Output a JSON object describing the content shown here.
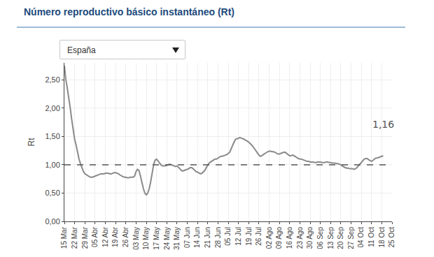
{
  "chart_data": {
    "type": "line",
    "title": "Número reproductivo básico instantáneo (Rt)",
    "selector": "España",
    "y_label": "Rt",
    "color": "#8a8a8a",
    "grid": true,
    "ylim": [
      0,
      2.8
    ],
    "yticks": [
      {
        "value": 0,
        "label": "0,00"
      },
      {
        "value": 0.5,
        "label": "0,50"
      },
      {
        "value": 1,
        "label": "1,00"
      },
      {
        "value": 1.5,
        "label": "1,50"
      },
      {
        "value": 2,
        "label": "2,00"
      },
      {
        "value": 2.5,
        "label": "2,50"
      }
    ],
    "reference_line": 1,
    "annotations": [
      {
        "text": "1,16",
        "value": 1.16
      }
    ],
    "categories": [
      "15 Mar",
      null,
      null,
      null,
      null,
      null,
      null,
      "22 Mar",
      null,
      null,
      null,
      null,
      null,
      null,
      "29 Mar",
      null,
      null,
      null,
      null,
      null,
      null,
      "05 Abr",
      null,
      null,
      null,
      null,
      null,
      null,
      "12 Abr",
      null,
      null,
      null,
      null,
      null,
      null,
      "19 Abr",
      null,
      null,
      null,
      null,
      null,
      null,
      "26 Abr",
      null,
      null,
      null,
      null,
      null,
      null,
      "03 May",
      null,
      null,
      null,
      null,
      null,
      null,
      "10 May",
      null,
      null,
      null,
      null,
      null,
      null,
      "17 May",
      null,
      null,
      null,
      null,
      null,
      null,
      "24 May",
      null,
      null,
      null,
      null,
      null,
      null,
      "31 May",
      null,
      null,
      null,
      null,
      null,
      null,
      "07 Jun",
      null,
      null,
      null,
      null,
      null,
      null,
      "14 Jun",
      null,
      null,
      null,
      null,
      null,
      null,
      "21 Jun",
      null,
      null,
      null,
      null,
      null,
      null,
      "28 Jun",
      null,
      null,
      null,
      null,
      null,
      null,
      "05 Jul",
      null,
      null,
      null,
      null,
      null,
      null,
      "12 Jul",
      null,
      null,
      null,
      null,
      null,
      null,
      "19 Jul",
      null,
      null,
      null,
      null,
      null,
      null,
      "26 Jul",
      null,
      null,
      null,
      null,
      null,
      null,
      "02 Ago",
      null,
      null,
      null,
      null,
      null,
      null,
      "09 Ago",
      null,
      null,
      null,
      null,
      null,
      null,
      "16 Ago",
      null,
      null,
      null,
      null,
      null,
      null,
      "23 Ago",
      null,
      null,
      null,
      null,
      null,
      null,
      "30 Ago",
      null,
      null,
      null,
      null,
      null,
      null,
      "06 Sep",
      null,
      null,
      null,
      null,
      null,
      null,
      "13 Sep",
      null,
      null,
      null,
      null,
      null,
      null,
      "20 Sep",
      null,
      null,
      null,
      null,
      null,
      null,
      "27 Sep",
      null,
      null,
      null,
      null,
      null,
      null,
      "04 Oct",
      null,
      null,
      null,
      null,
      null,
      null,
      "11 Oct",
      null,
      null,
      null,
      null,
      null,
      null,
      "18 Oct",
      null,
      null,
      null,
      null,
      null,
      null,
      "25 Oct"
    ],
    "values": [
      2.75,
      2.5,
      2.35,
      2.2,
      2.0,
      1.8,
      1.6,
      1.45,
      1.35,
      1.22,
      1.1,
      1.02,
      0.95,
      0.88,
      0.84,
      0.82,
      0.8,
      0.79,
      0.78,
      0.78,
      0.79,
      0.8,
      0.81,
      0.82,
      0.83,
      0.84,
      0.84,
      0.84,
      0.85,
      0.85,
      0.85,
      0.84,
      0.84,
      0.85,
      0.86,
      0.86,
      0.85,
      0.84,
      0.82,
      0.8,
      0.79,
      0.78,
      0.78,
      0.77,
      0.77,
      0.78,
      0.78,
      0.78,
      0.8,
      0.88,
      0.92,
      0.9,
      0.8,
      0.68,
      0.58,
      0.5,
      0.47,
      0.5,
      0.58,
      0.7,
      0.85,
      1.0,
      1.08,
      1.1,
      1.07,
      1.03,
      1.0,
      0.98,
      0.98,
      0.98,
      0.99,
      1.0,
      1.01,
      1.0,
      0.99,
      0.98,
      0.97,
      0.98,
      0.96,
      0.93,
      0.9,
      0.89,
      0.9,
      0.91,
      0.92,
      0.93,
      0.95,
      0.95,
      0.93,
      0.9,
      0.88,
      0.87,
      0.85,
      0.84,
      0.85,
      0.87,
      0.9,
      0.95,
      1.0,
      1.03,
      1.05,
      1.07,
      1.08,
      1.1,
      1.1,
      1.12,
      1.13,
      1.15,
      1.15,
      1.16,
      1.17,
      1.18,
      1.2,
      1.22,
      1.28,
      1.35,
      1.4,
      1.45,
      1.46,
      1.47,
      1.48,
      1.47,
      1.46,
      1.45,
      1.43,
      1.42,
      1.4,
      1.38,
      1.35,
      1.32,
      1.28,
      1.25,
      1.2,
      1.17,
      1.15,
      1.16,
      1.18,
      1.2,
      1.22,
      1.23,
      1.24,
      1.24,
      1.23,
      1.23,
      1.22,
      1.2,
      1.19,
      1.19,
      1.2,
      1.21,
      1.22,
      1.22,
      1.2,
      1.18,
      1.16,
      1.16,
      1.17,
      1.16,
      1.14,
      1.12,
      1.11,
      1.1,
      1.1,
      1.09,
      1.08,
      1.07,
      1.06,
      1.06,
      1.05,
      1.05,
      1.05,
      1.04,
      1.04,
      1.05,
      1.05,
      1.05,
      1.04,
      1.04,
      1.04,
      1.05,
      1.05,
      1.04,
      1.04,
      1.03,
      1.03,
      1.03,
      1.02,
      1.02,
      1.01,
      1.0,
      0.98,
      0.96,
      0.95,
      0.94,
      0.94,
      0.93,
      0.93,
      0.93,
      0.92,
      0.93,
      0.95,
      0.98,
      1.02,
      1.05,
      1.08,
      1.1,
      1.11,
      1.11,
      1.09,
      1.07,
      1.06,
      1.08,
      1.1,
      1.12,
      1.12,
      1.13,
      1.14,
      1.15,
      1.16,
      null,
      null,
      null,
      null,
      null,
      null
    ]
  }
}
